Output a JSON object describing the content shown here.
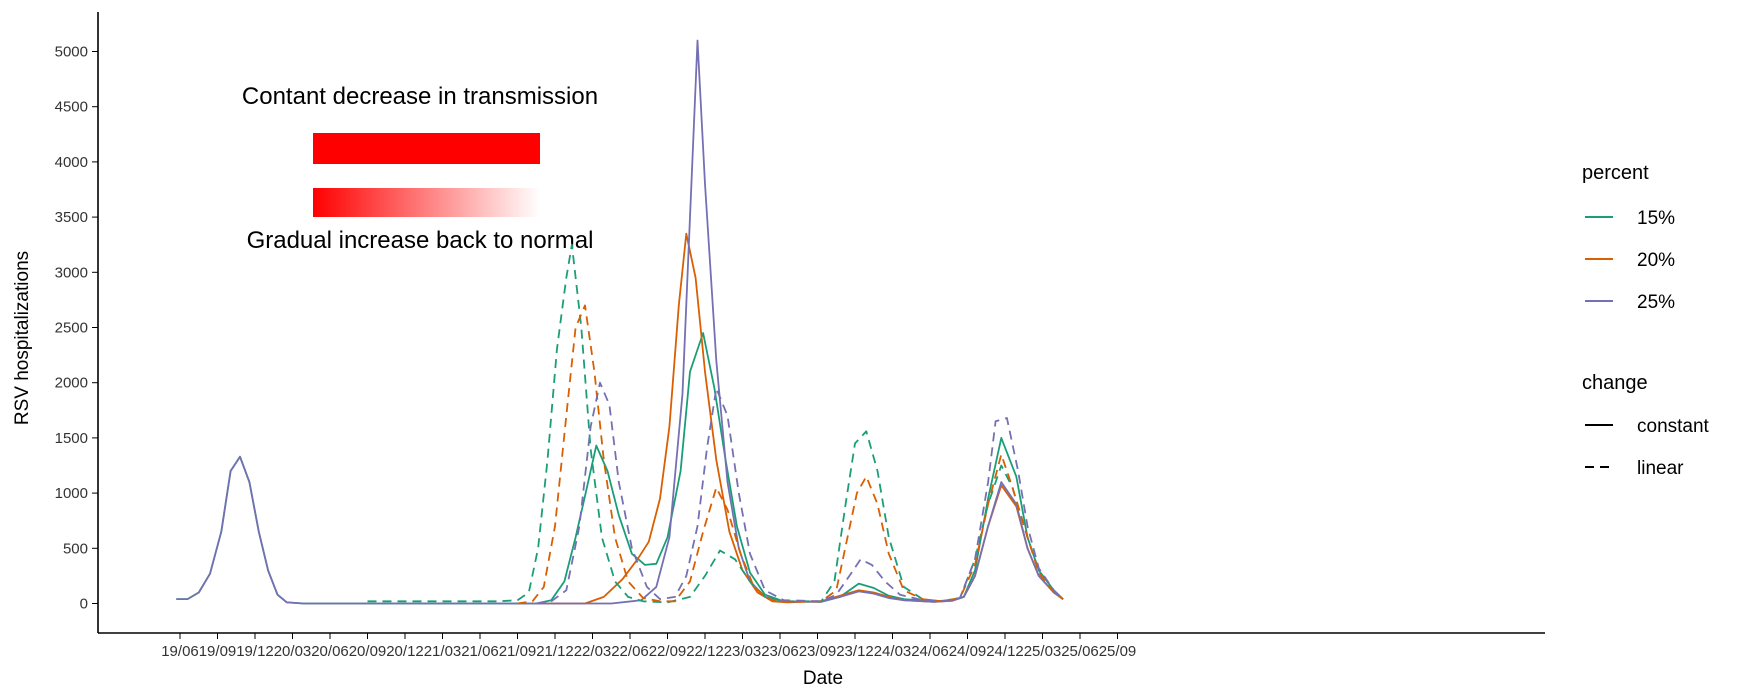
{
  "chart_data": {
    "type": "line",
    "title": "",
    "xlabel": "Date",
    "ylabel": "RSV hospitalizations",
    "ylim": [
      -250,
      5380
    ],
    "x_ticks": [
      "19/06",
      "19/09",
      "19/12",
      "20/03",
      "20/06",
      "20/09",
      "20/12",
      "21/03",
      "21/06",
      "21/09",
      "21/12",
      "22/03",
      "22/06",
      "22/09",
      "22/12",
      "23/03",
      "23/06",
      "23/09",
      "23/12",
      "24/03",
      "24/06",
      "24/09",
      "24/12",
      "25/03",
      "25/06",
      "25/09"
    ],
    "y_ticks": [
      0,
      500,
      1000,
      1500,
      2000,
      2500,
      3000,
      3500,
      4000,
      4500,
      5000
    ],
    "x_unit_note": "x values are in quarters from 19/06",
    "grid": false,
    "annotations": {
      "top": "Contant decrease in transmission",
      "bottom": "Gradual increase back to normal",
      "bar_color": "#ff0000"
    },
    "legend": {
      "placement": "right",
      "color_title": "percent",
      "color_entries": [
        {
          "label": "15%",
          "color": "#1b9e77"
        },
        {
          "label": "20%",
          "color": "#d95f02"
        },
        {
          "label": "25%",
          "color": "#7570b3"
        }
      ],
      "linetype_title": "change",
      "linetype_entries": [
        {
          "label": "constant",
          "dash": "solid"
        },
        {
          "label": "linear",
          "dash": "dashed"
        }
      ]
    },
    "series": [
      {
        "percent": "15%",
        "change": "constant",
        "color": "#1b9e77",
        "dash": "solid",
        "points": [
          [
            -0.1,
            40
          ],
          [
            0.2,
            40
          ],
          [
            0.5,
            100
          ],
          [
            0.8,
            270
          ],
          [
            1.1,
            650
          ],
          [
            1.35,
            1200
          ],
          [
            1.6,
            1330
          ],
          [
            1.85,
            1100
          ],
          [
            2.1,
            650
          ],
          [
            2.35,
            300
          ],
          [
            2.6,
            80
          ],
          [
            2.85,
            10
          ],
          [
            3.3,
            0
          ],
          [
            6,
            0
          ],
          [
            9.5,
            0
          ],
          [
            9.9,
            30
          ],
          [
            10.25,
            200
          ],
          [
            10.55,
            600
          ],
          [
            10.85,
            1050
          ],
          [
            11.1,
            1430
          ],
          [
            11.4,
            1200
          ],
          [
            11.7,
            800
          ],
          [
            12.05,
            450
          ],
          [
            12.4,
            350
          ],
          [
            12.7,
            360
          ],
          [
            13.0,
            600
          ],
          [
            13.35,
            1200
          ],
          [
            13.6,
            2100
          ],
          [
            13.95,
            2450
          ],
          [
            14.25,
            1950
          ],
          [
            14.55,
            1300
          ],
          [
            14.85,
            700
          ],
          [
            15.2,
            280
          ],
          [
            15.6,
            80
          ],
          [
            16.1,
            20
          ],
          [
            17.1,
            15
          ],
          [
            17.6,
            60
          ],
          [
            18.1,
            180
          ],
          [
            18.5,
            140
          ],
          [
            18.9,
            70
          ],
          [
            19.3,
            40
          ],
          [
            20.1,
            20
          ],
          [
            20.6,
            30
          ],
          [
            20.9,
            60
          ],
          [
            21.2,
            300
          ],
          [
            21.55,
            950
          ],
          [
            21.9,
            1500
          ],
          [
            22.3,
            1150
          ],
          [
            22.6,
            600
          ],
          [
            22.9,
            300
          ],
          [
            23.3,
            120
          ],
          [
            23.55,
            40
          ]
        ]
      },
      {
        "percent": "20%",
        "change": "constant",
        "color": "#d95f02",
        "dash": "solid",
        "points": [
          [
            9.5,
            0
          ],
          [
            10.8,
            0
          ],
          [
            11.3,
            60
          ],
          [
            11.8,
            220
          ],
          [
            12.2,
            400
          ],
          [
            12.5,
            560
          ],
          [
            12.8,
            950
          ],
          [
            13.05,
            1600
          ],
          [
            13.3,
            2700
          ],
          [
            13.5,
            3350
          ],
          [
            13.75,
            2950
          ],
          [
            14.0,
            2100
          ],
          [
            14.3,
            1300
          ],
          [
            14.65,
            650
          ],
          [
            15.0,
            300
          ],
          [
            15.4,
            100
          ],
          [
            15.8,
            20
          ],
          [
            16.2,
            10
          ],
          [
            17.1,
            20
          ],
          [
            17.6,
            70
          ],
          [
            18.1,
            120
          ],
          [
            18.5,
            100
          ],
          [
            18.9,
            60
          ],
          [
            19.3,
            30
          ],
          [
            20.1,
            15
          ],
          [
            20.6,
            25
          ],
          [
            20.9,
            60
          ],
          [
            21.2,
            250
          ],
          [
            21.55,
            700
          ],
          [
            21.9,
            1070
          ],
          [
            22.3,
            880
          ],
          [
            22.6,
            500
          ],
          [
            22.9,
            250
          ],
          [
            23.3,
            100
          ],
          [
            23.55,
            40
          ]
        ]
      },
      {
        "percent": "25%",
        "change": "constant",
        "color": "#7570b3",
        "dash": "solid",
        "points": [
          [
            -0.1,
            40
          ],
          [
            0.2,
            40
          ],
          [
            0.5,
            100
          ],
          [
            0.8,
            270
          ],
          [
            1.1,
            650
          ],
          [
            1.35,
            1200
          ],
          [
            1.6,
            1330
          ],
          [
            1.85,
            1100
          ],
          [
            2.1,
            650
          ],
          [
            2.35,
            300
          ],
          [
            2.6,
            80
          ],
          [
            2.85,
            10
          ],
          [
            3.3,
            0
          ],
          [
            6,
            0
          ],
          [
            9.5,
            0
          ],
          [
            11.5,
            0
          ],
          [
            12.3,
            30
          ],
          [
            12.7,
            150
          ],
          [
            13.05,
            600
          ],
          [
            13.4,
            1900
          ],
          [
            13.6,
            3500
          ],
          [
            13.8,
            5100
          ],
          [
            14.0,
            3800
          ],
          [
            14.3,
            2200
          ],
          [
            14.6,
            1100
          ],
          [
            14.9,
            500
          ],
          [
            15.2,
            200
          ],
          [
            15.6,
            60
          ],
          [
            16.1,
            20
          ],
          [
            17.1,
            15
          ],
          [
            17.6,
            60
          ],
          [
            18.1,
            110
          ],
          [
            18.5,
            90
          ],
          [
            18.9,
            50
          ],
          [
            19.3,
            30
          ],
          [
            20.1,
            15
          ],
          [
            20.6,
            25
          ],
          [
            20.9,
            60
          ],
          [
            21.2,
            250
          ],
          [
            21.55,
            700
          ],
          [
            21.9,
            1100
          ],
          [
            22.3,
            900
          ],
          [
            22.6,
            500
          ],
          [
            22.9,
            250
          ],
          [
            23.3,
            100
          ],
          [
            23.55,
            40
          ]
        ]
      },
      {
        "percent": "15%",
        "change": "linear",
        "color": "#1b9e77",
        "dash": "dashed",
        "points": [
          [
            5.0,
            20
          ],
          [
            8.5,
            20
          ],
          [
            9.0,
            30
          ],
          [
            9.3,
            100
          ],
          [
            9.55,
            500
          ],
          [
            9.8,
            1300
          ],
          [
            10.05,
            2300
          ],
          [
            10.3,
            2950
          ],
          [
            10.45,
            3250
          ],
          [
            10.7,
            2500
          ],
          [
            10.95,
            1400
          ],
          [
            11.25,
            600
          ],
          [
            11.6,
            200
          ],
          [
            11.95,
            60
          ],
          [
            12.35,
            20
          ],
          [
            13.0,
            10
          ],
          [
            13.6,
            60
          ],
          [
            14.0,
            250
          ],
          [
            14.4,
            480
          ],
          [
            14.8,
            400
          ],
          [
            15.2,
            200
          ],
          [
            15.6,
            60
          ],
          [
            16.1,
            20
          ],
          [
            17.1,
            20
          ],
          [
            17.45,
            200
          ],
          [
            17.75,
            900
          ],
          [
            18.0,
            1450
          ],
          [
            18.3,
            1560
          ],
          [
            18.6,
            1200
          ],
          [
            18.9,
            600
          ],
          [
            19.3,
            150
          ],
          [
            19.8,
            40
          ],
          [
            20.3,
            20
          ],
          [
            20.8,
            50
          ],
          [
            21.2,
            400
          ],
          [
            21.55,
            900
          ],
          [
            21.9,
            1250
          ],
          [
            22.2,
            1050
          ],
          [
            22.6,
            600
          ],
          [
            22.9,
            300
          ],
          [
            23.3,
            100
          ],
          [
            23.55,
            40
          ]
        ]
      },
      {
        "percent": "20%",
        "change": "linear",
        "color": "#d95f02",
        "dash": "dashed",
        "points": [
          [
            9.0,
            0
          ],
          [
            9.4,
            20
          ],
          [
            9.7,
            150
          ],
          [
            10.0,
            700
          ],
          [
            10.3,
            1700
          ],
          [
            10.55,
            2500
          ],
          [
            10.8,
            2700
          ],
          [
            11.05,
            2100
          ],
          [
            11.3,
            1300
          ],
          [
            11.6,
            600
          ],
          [
            11.95,
            200
          ],
          [
            12.35,
            50
          ],
          [
            12.8,
            20
          ],
          [
            13.2,
            20
          ],
          [
            13.6,
            200
          ],
          [
            13.95,
            650
          ],
          [
            14.3,
            1050
          ],
          [
            14.6,
            850
          ],
          [
            14.95,
            450
          ],
          [
            15.3,
            150
          ],
          [
            15.7,
            40
          ],
          [
            16.1,
            15
          ],
          [
            17.1,
            20
          ],
          [
            17.5,
            120
          ],
          [
            17.8,
            600
          ],
          [
            18.05,
            1000
          ],
          [
            18.3,
            1150
          ],
          [
            18.6,
            900
          ],
          [
            18.9,
            450
          ],
          [
            19.3,
            120
          ],
          [
            19.8,
            40
          ],
          [
            20.3,
            20
          ],
          [
            20.8,
            50
          ],
          [
            21.2,
            350
          ],
          [
            21.55,
            900
          ],
          [
            21.9,
            1350
          ],
          [
            22.2,
            1050
          ],
          [
            22.6,
            600
          ],
          [
            22.9,
            280
          ],
          [
            23.3,
            100
          ],
          [
            23.55,
            40
          ]
        ]
      },
      {
        "percent": "25%",
        "change": "linear",
        "color": "#7570b3",
        "dash": "dashed",
        "points": [
          [
            9.5,
            0
          ],
          [
            9.9,
            20
          ],
          [
            10.3,
            120
          ],
          [
            10.65,
            700
          ],
          [
            10.95,
            1600
          ],
          [
            11.2,
            2000
          ],
          [
            11.45,
            1800
          ],
          [
            11.7,
            1100
          ],
          [
            12.05,
            500
          ],
          [
            12.45,
            150
          ],
          [
            12.8,
            40
          ],
          [
            13.2,
            60
          ],
          [
            13.5,
            250
          ],
          [
            13.8,
            700
          ],
          [
            14.05,
            1400
          ],
          [
            14.3,
            1950
          ],
          [
            14.6,
            1700
          ],
          [
            14.9,
            1000
          ],
          [
            15.2,
            450
          ],
          [
            15.6,
            120
          ],
          [
            16.1,
            30
          ],
          [
            17.1,
            20
          ],
          [
            17.5,
            80
          ],
          [
            17.85,
            250
          ],
          [
            18.15,
            400
          ],
          [
            18.45,
            350
          ],
          [
            18.8,
            200
          ],
          [
            19.2,
            80
          ],
          [
            19.8,
            30
          ],
          [
            20.3,
            20
          ],
          [
            20.8,
            50
          ],
          [
            21.2,
            400
          ],
          [
            21.55,
            1100
          ],
          [
            21.75,
            1650
          ],
          [
            22.05,
            1680
          ],
          [
            22.35,
            1200
          ],
          [
            22.6,
            700
          ],
          [
            22.9,
            320
          ],
          [
            23.3,
            120
          ],
          [
            23.55,
            40
          ]
        ]
      }
    ]
  }
}
